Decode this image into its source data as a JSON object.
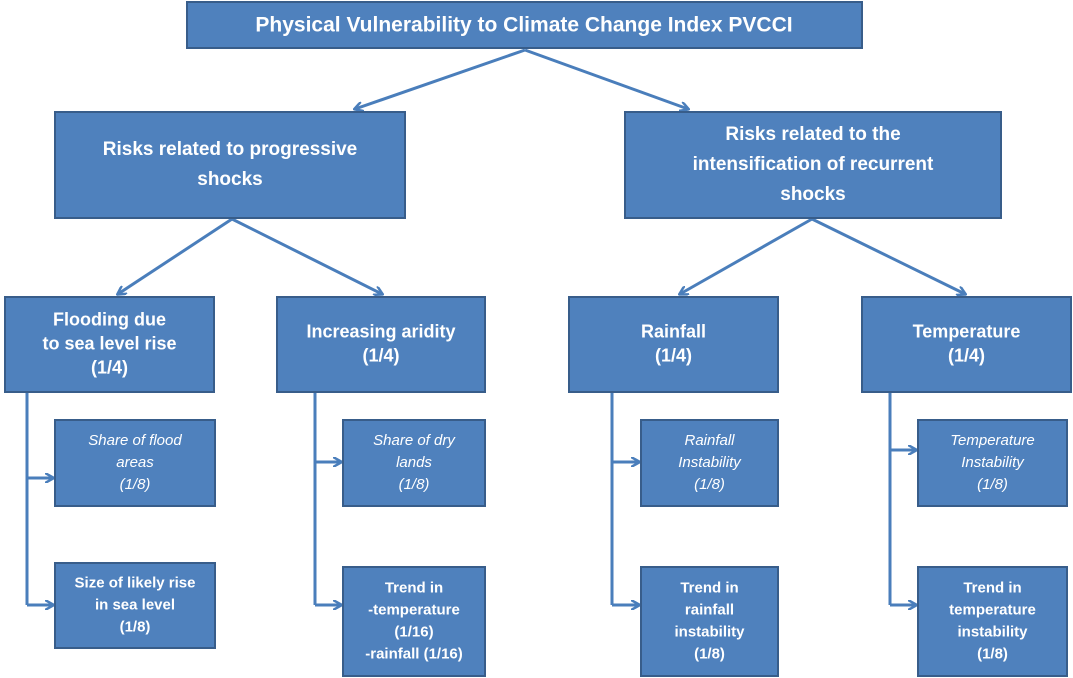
{
  "title": "Physical Vulnerability to Climate Change Index PVCCI",
  "branches": [
    {
      "label": [
        "Risks related to progressive",
        "shocks"
      ],
      "components": [
        {
          "label": [
            "Flooding due",
            "to sea level rise",
            "(1/4)"
          ],
          "indicators": [
            {
              "label": [
                "Share of flood",
                "areas",
                "(1/8)"
              ]
            },
            {
              "label": [
                "Size of likely rise",
                "in sea level",
                "(1/8)"
              ]
            }
          ]
        },
        {
          "label": [
            "Increasing aridity",
            "(1/4)"
          ],
          "indicators": [
            {
              "label": [
                "Share of dry",
                "lands",
                "(1/8)"
              ]
            },
            {
              "label": [
                "Trend in",
                "-temperature",
                "(1/16)",
                "-rainfall (1/16)"
              ]
            }
          ]
        }
      ]
    },
    {
      "label": [
        "Risks related  to the",
        "intensification  of recurrent",
        "shocks"
      ],
      "components": [
        {
          "label": [
            "Rainfall",
            "(1/4)"
          ],
          "indicators": [
            {
              "label": [
                "Rainfall",
                "Instability",
                "(1/8)"
              ]
            },
            {
              "label": [
                "Trend in",
                "rainfall",
                "instability",
                "(1/8)"
              ]
            }
          ]
        },
        {
          "label": [
            "Temperature",
            "(1/4)"
          ],
          "indicators": [
            {
              "label": [
                "Temperature",
                "Instability",
                "(1/8)"
              ]
            },
            {
              "label": [
                "Trend in",
                "temperature",
                "instability",
                "(1/8)"
              ]
            }
          ]
        }
      ]
    }
  ]
}
